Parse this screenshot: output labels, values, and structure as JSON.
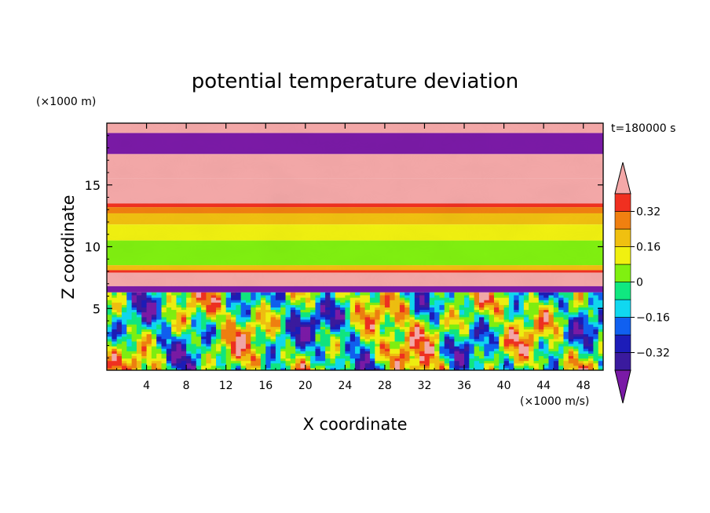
{
  "chart_data": {
    "type": "heatmap",
    "title": "potential temperature deviation",
    "xlabel": "X coordinate",
    "ylabel": "Z coordinate",
    "x_unit": "(×1000 m/s)",
    "y_unit": "(×1000 m)",
    "time_label": "t=180000 s",
    "xlim": [
      0,
      50
    ],
    "ylim": [
      0,
      20
    ],
    "x_ticks": [
      "4",
      "8",
      "12",
      "16",
      "20",
      "24",
      "28",
      "32",
      "36",
      "40",
      "44",
      "48"
    ],
    "x_tick_values": [
      4,
      8,
      12,
      16,
      20,
      24,
      28,
      32,
      36,
      40,
      44,
      48
    ],
    "y_ticks": [
      "5",
      "10",
      "15"
    ],
    "y_tick_values": [
      5,
      10,
      15
    ],
    "colorbar": {
      "levels": [
        -0.4,
        -0.32,
        -0.24,
        -0.16,
        -0.08,
        0,
        0.08,
        0.16,
        0.24,
        0.32,
        0.4
      ],
      "tick_labels": [
        "0.32",
        "0.16",
        "0",
        "−0.16",
        "−0.32"
      ],
      "tick_values": [
        0.32,
        0.16,
        0,
        -0.16,
        -0.32
      ],
      "colors": [
        "#7a1aa6",
        "#3a1a9e",
        "#1c1cb8",
        "#1060f0",
        "#10d8f0",
        "#10e880",
        "#80f010",
        "#f0f010",
        "#f0c010",
        "#f08010",
        "#f03020",
        "#f4a8a8"
      ],
      "extend": "both"
    },
    "layers": [
      {
        "z": [
          19.2,
          20
        ],
        "value": 0.45
      },
      {
        "z": [
          17.5,
          19.2
        ],
        "value": -0.45
      },
      {
        "z": [
          15.5,
          17.5
        ],
        "value": 0.45
      },
      {
        "z": [
          13.5,
          15.5
        ],
        "value": 0.42
      },
      {
        "z": [
          13.2,
          13.5
        ],
        "value": 0.36
      },
      {
        "z": [
          12.7,
          13.2
        ],
        "value": 0.28
      },
      {
        "z": [
          11.8,
          12.7
        ],
        "value": 0.2
      },
      {
        "z": [
          10.5,
          11.8
        ],
        "value": 0.12
      },
      {
        "z": [
          8.5,
          10.5
        ],
        "value": 0.04
      },
      {
        "z": [
          8.1,
          8.5
        ],
        "value": 0.2
      },
      {
        "z": [
          7.9,
          8.1
        ],
        "value": 0.36
      },
      {
        "z": [
          6.8,
          7.9
        ],
        "value": 0.45
      },
      {
        "z": [
          6.3,
          6.8
        ],
        "value": -0.45
      }
    ]
  }
}
